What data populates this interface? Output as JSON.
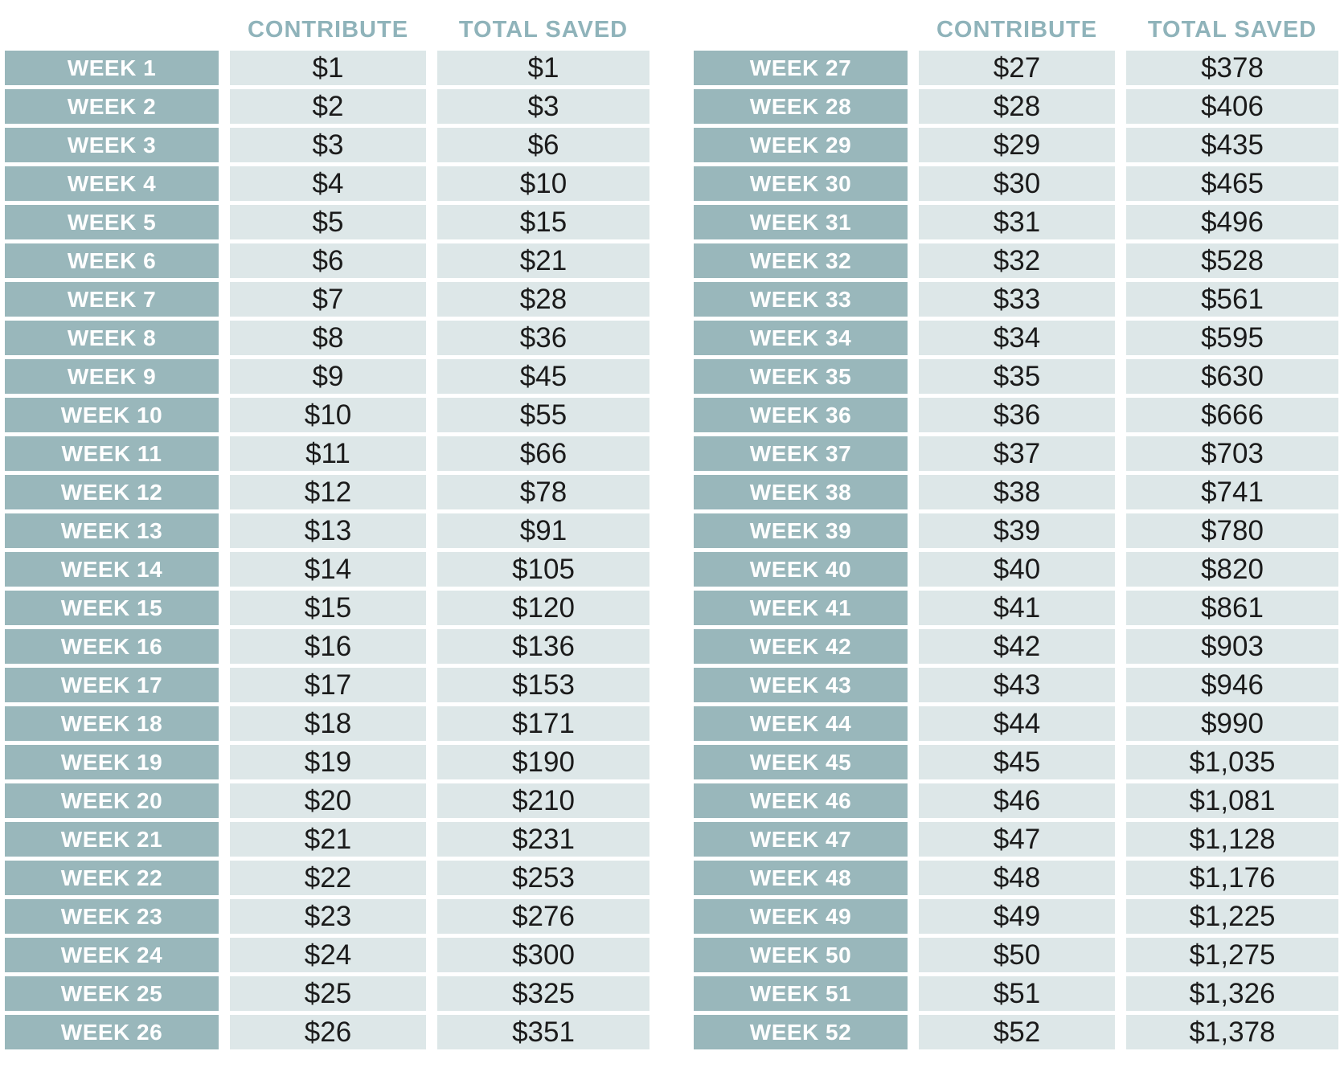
{
  "colors": {
    "page_bg": "#ffffff",
    "week_cell_bg": "#99b7bb",
    "amount_cell_bg": "#dde7e8",
    "header_text": "#8fb3ba",
    "week_text": "#ffffff",
    "amount_text": "#1b1b1b"
  },
  "chart_data": {
    "type": "table",
    "layout": "two side-by-side tables, 26 rows each, white gaps between cells, no visible page title",
    "tables": [
      {
        "column_headers": [
          "CONTRIBUTE",
          "TOTAL SAVED"
        ],
        "rows": [
          {
            "week": "WEEK 1",
            "contribute": "$1",
            "total_saved": "$1"
          },
          {
            "week": "WEEK 2",
            "contribute": "$2",
            "total_saved": "$3"
          },
          {
            "week": "WEEK 3",
            "contribute": "$3",
            "total_saved": "$6"
          },
          {
            "week": "WEEK 4",
            "contribute": "$4",
            "total_saved": "$10"
          },
          {
            "week": "WEEK 5",
            "contribute": "$5",
            "total_saved": "$15"
          },
          {
            "week": "WEEK 6",
            "contribute": "$6",
            "total_saved": "$21"
          },
          {
            "week": "WEEK 7",
            "contribute": "$7",
            "total_saved": "$28"
          },
          {
            "week": "WEEK 8",
            "contribute": "$8",
            "total_saved": "$36"
          },
          {
            "week": "WEEK 9",
            "contribute": "$9",
            "total_saved": "$45"
          },
          {
            "week": "WEEK 10",
            "contribute": "$10",
            "total_saved": "$55"
          },
          {
            "week": "WEEK 11",
            "contribute": "$11",
            "total_saved": "$66"
          },
          {
            "week": "WEEK 12",
            "contribute": "$12",
            "total_saved": "$78"
          },
          {
            "week": "WEEK 13",
            "contribute": "$13",
            "total_saved": "$91"
          },
          {
            "week": "WEEK 14",
            "contribute": "$14",
            "total_saved": "$105"
          },
          {
            "week": "WEEK 15",
            "contribute": "$15",
            "total_saved": "$120"
          },
          {
            "week": "WEEK 16",
            "contribute": "$16",
            "total_saved": "$136"
          },
          {
            "week": "WEEK 17",
            "contribute": "$17",
            "total_saved": "$153"
          },
          {
            "week": "WEEK 18",
            "contribute": "$18",
            "total_saved": "$171"
          },
          {
            "week": "WEEK 19",
            "contribute": "$19",
            "total_saved": "$190"
          },
          {
            "week": "WEEK 20",
            "contribute": "$20",
            "total_saved": "$210"
          },
          {
            "week": "WEEK 21",
            "contribute": "$21",
            "total_saved": "$231"
          },
          {
            "week": "WEEK 22",
            "contribute": "$22",
            "total_saved": "$253"
          },
          {
            "week": "WEEK 23",
            "contribute": "$23",
            "total_saved": "$276"
          },
          {
            "week": "WEEK 24",
            "contribute": "$24",
            "total_saved": "$300"
          },
          {
            "week": "WEEK 25",
            "contribute": "$25",
            "total_saved": "$325"
          },
          {
            "week": "WEEK 26",
            "contribute": "$26",
            "total_saved": "$351"
          }
        ]
      },
      {
        "column_headers": [
          "CONTRIBUTE",
          "TOTAL SAVED"
        ],
        "rows": [
          {
            "week": "WEEK 27",
            "contribute": "$27",
            "total_saved": "$378"
          },
          {
            "week": "WEEK 28",
            "contribute": "$28",
            "total_saved": "$406"
          },
          {
            "week": "WEEK 29",
            "contribute": "$29",
            "total_saved": "$435"
          },
          {
            "week": "WEEK 30",
            "contribute": "$30",
            "total_saved": "$465"
          },
          {
            "week": "WEEK 31",
            "contribute": "$31",
            "total_saved": "$496"
          },
          {
            "week": "WEEK 32",
            "contribute": "$32",
            "total_saved": "$528"
          },
          {
            "week": "WEEK 33",
            "contribute": "$33",
            "total_saved": "$561"
          },
          {
            "week": "WEEK 34",
            "contribute": "$34",
            "total_saved": "$595"
          },
          {
            "week": "WEEK 35",
            "contribute": "$35",
            "total_saved": "$630"
          },
          {
            "week": "WEEK 36",
            "contribute": "$36",
            "total_saved": "$666"
          },
          {
            "week": "WEEK 37",
            "contribute": "$37",
            "total_saved": "$703"
          },
          {
            "week": "WEEK 38",
            "contribute": "$38",
            "total_saved": "$741"
          },
          {
            "week": "WEEK 39",
            "contribute": "$39",
            "total_saved": "$780"
          },
          {
            "week": "WEEK 40",
            "contribute": "$40",
            "total_saved": "$820"
          },
          {
            "week": "WEEK 41",
            "contribute": "$41",
            "total_saved": "$861"
          },
          {
            "week": "WEEK 42",
            "contribute": "$42",
            "total_saved": "$903"
          },
          {
            "week": "WEEK 43",
            "contribute": "$43",
            "total_saved": "$946"
          },
          {
            "week": "WEEK 44",
            "contribute": "$44",
            "total_saved": "$990"
          },
          {
            "week": "WEEK 45",
            "contribute": "$45",
            "total_saved": "$1,035"
          },
          {
            "week": "WEEK 46",
            "contribute": "$46",
            "total_saved": "$1,081"
          },
          {
            "week": "WEEK 47",
            "contribute": "$47",
            "total_saved": "$1,128"
          },
          {
            "week": "WEEK 48",
            "contribute": "$48",
            "total_saved": "$1,176"
          },
          {
            "week": "WEEK 49",
            "contribute": "$49",
            "total_saved": "$1,225"
          },
          {
            "week": "WEEK 50",
            "contribute": "$50",
            "total_saved": "$1,275"
          },
          {
            "week": "WEEK 51",
            "contribute": "$51",
            "total_saved": "$1,326"
          },
          {
            "week": "WEEK 52",
            "contribute": "$52",
            "total_saved": "$1,378"
          }
        ]
      }
    ]
  }
}
